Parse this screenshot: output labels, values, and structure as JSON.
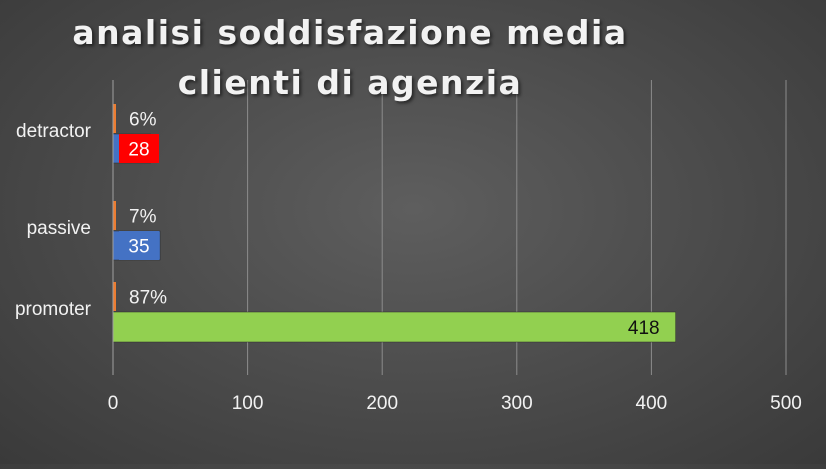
{
  "chart_data": {
    "type": "bar",
    "orientation": "horizontal",
    "title": "analisi soddisfazione media clienti di agenzia",
    "xlabel": "",
    "ylabel": "",
    "categories": [
      "detractor",
      "passive",
      "promoter"
    ],
    "series": [
      {
        "values": [
          6,
          7,
          87
        ],
        "value_labels": [
          "6%",
          "7%",
          "87%"
        ],
        "color": "#ed7d31"
      },
      {
        "values": [
          28,
          35,
          418
        ],
        "value_labels": [
          "28",
          "35",
          "418"
        ],
        "colors": [
          "#4472c4",
          "#4472c4",
          "#92d050"
        ]
      }
    ],
    "value_label_colors": [
      "#ff0000",
      "#4472c4",
      "#92d050"
    ],
    "xlim": [
      0,
      500
    ],
    "xticks": [
      "0",
      "100",
      "200",
      "300",
      "400",
      "500"
    ],
    "grid": true,
    "legend": "none"
  },
  "colors": {
    "background": "#4a4a4a",
    "gridline": "#8c8c8c",
    "text": "#f2f2f2"
  }
}
